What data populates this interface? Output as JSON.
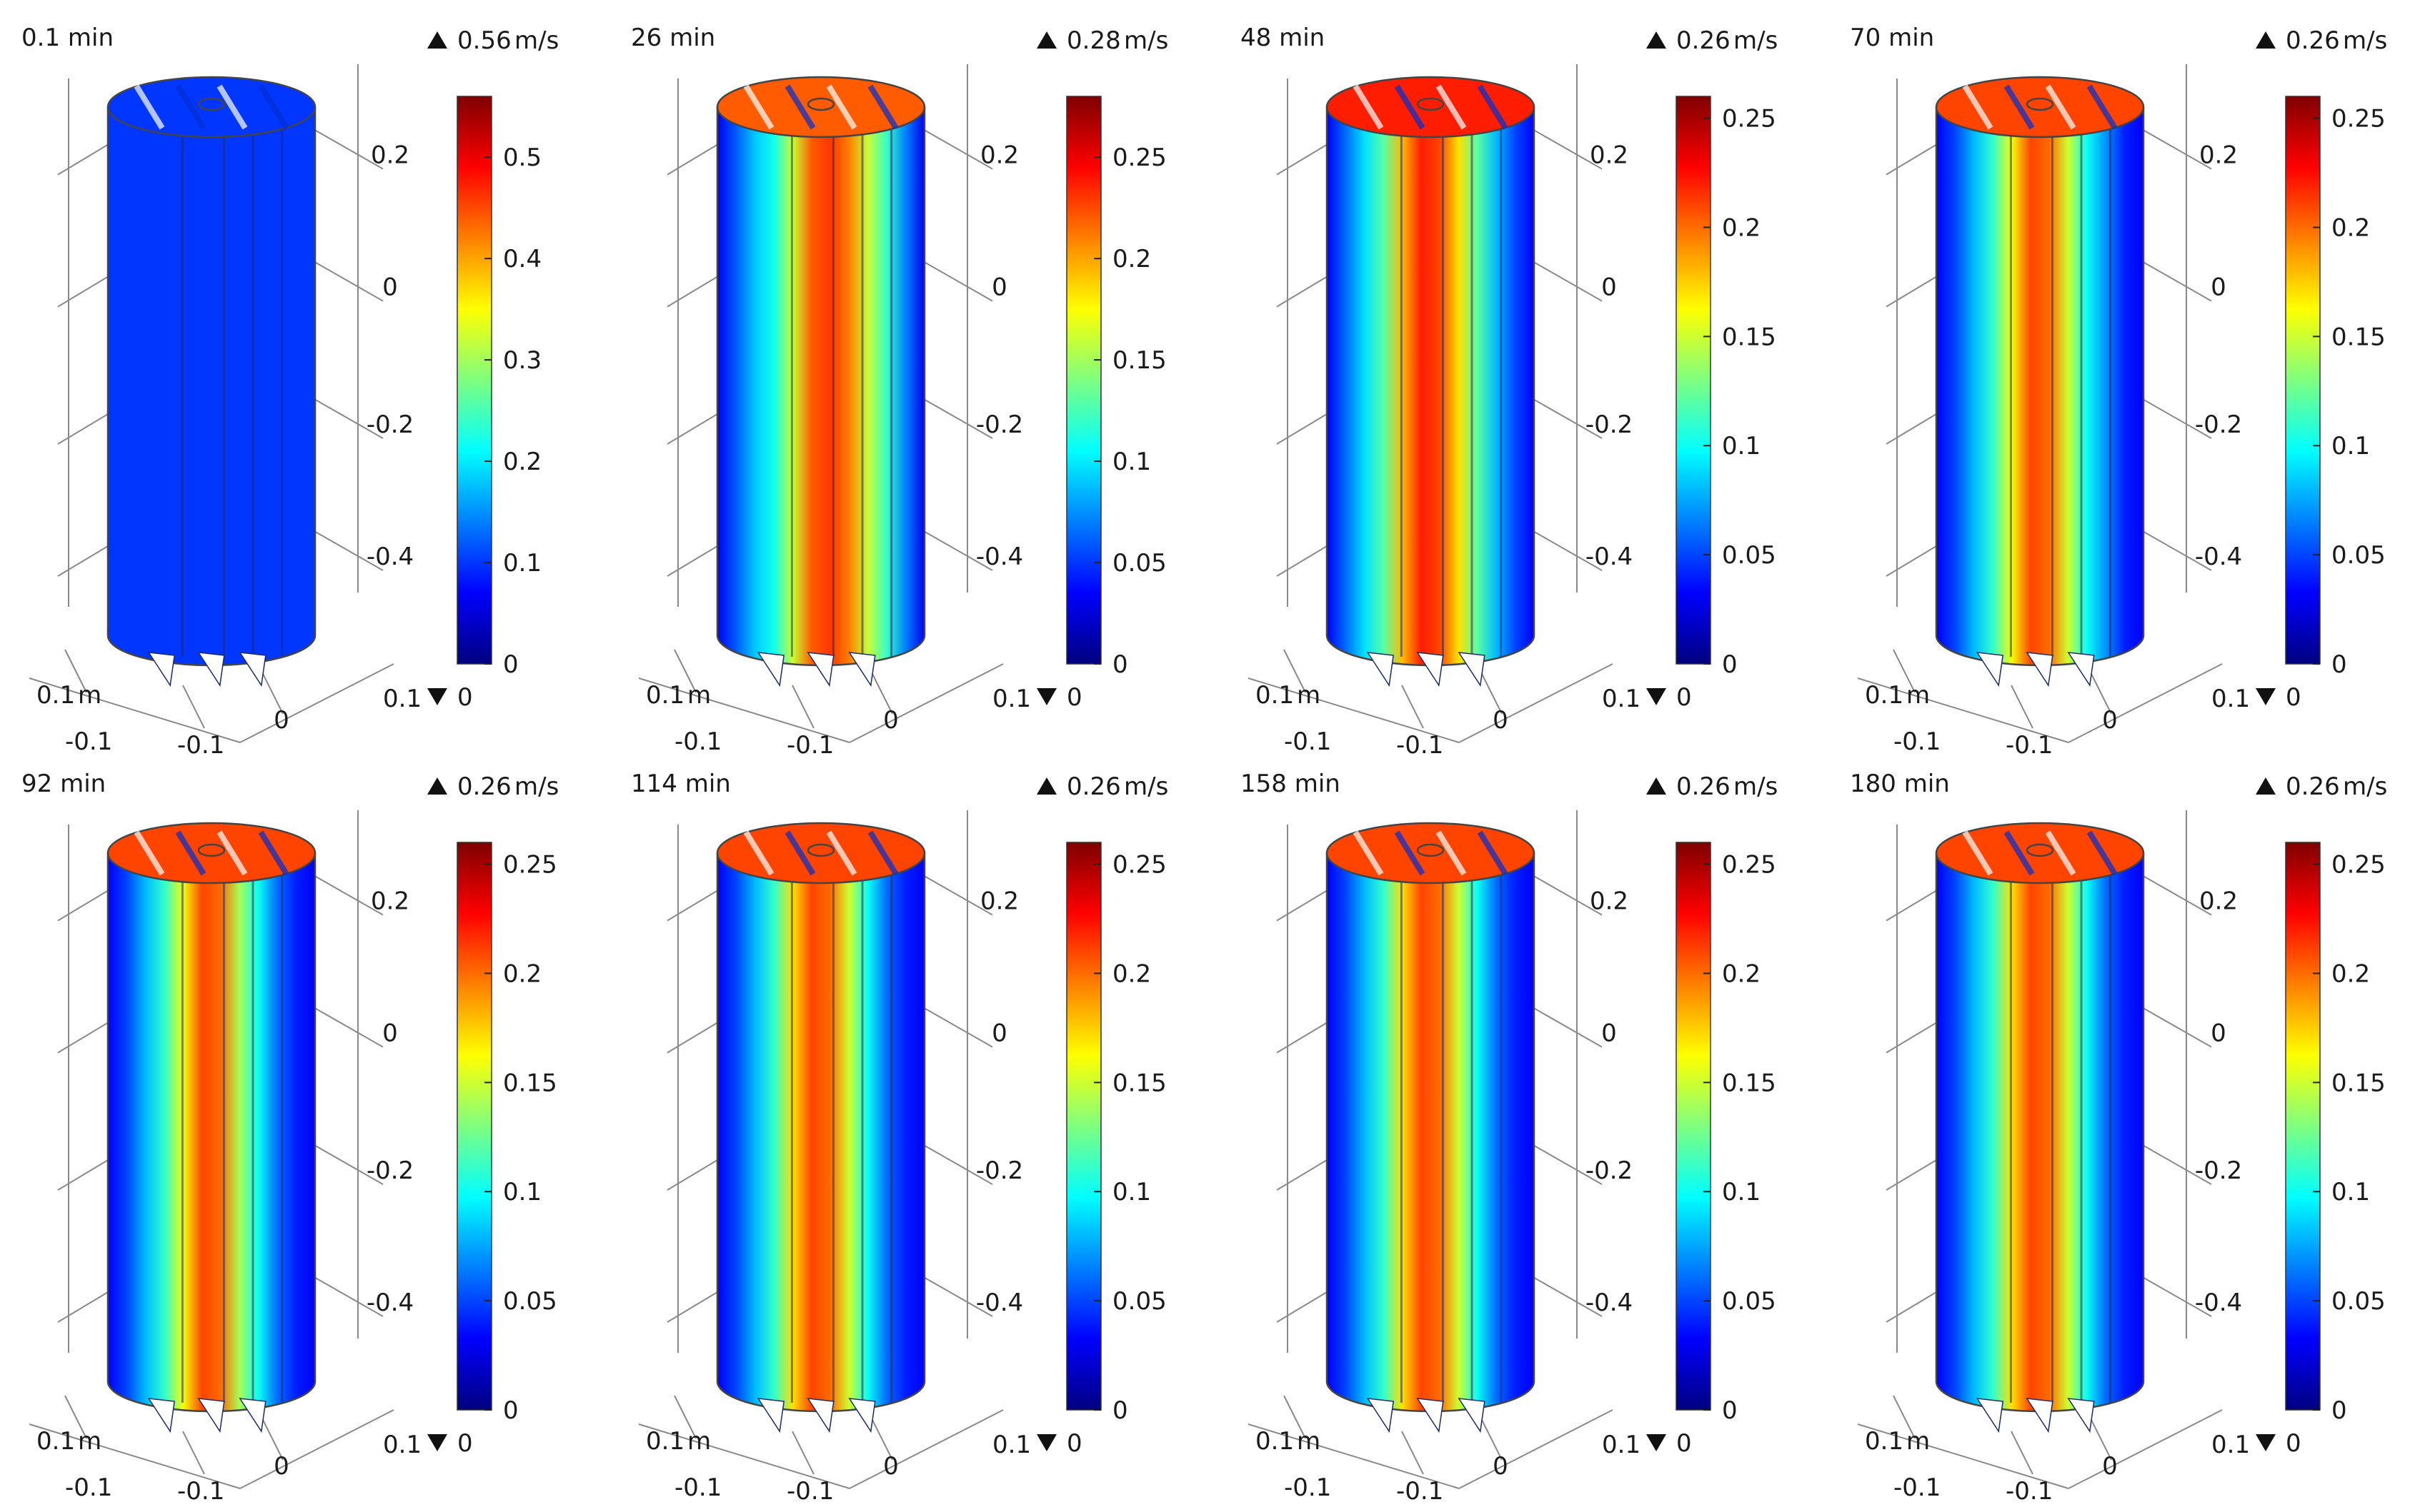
{
  "figure": {
    "columns": 4,
    "rows": 2
  },
  "colormap": {
    "name": "rainbow",
    "stops": [
      "#00007f",
      "#0000ff",
      "#007fff",
      "#00ffff",
      "#7fff7f",
      "#ffff00",
      "#ff7f00",
      "#ff0000",
      "#7f0000"
    ]
  },
  "colors": {
    "cylinder_outline": "#444444",
    "grid": "#8a8a8a",
    "background": "#ffffff"
  },
  "chart_data": [
    {
      "type": "3d-slice-plot",
      "time_label": "0.1 min",
      "quantity_unit": "m/s",
      "max_label": "0.56",
      "min_label": "0",
      "range": [
        0,
        0.56
      ],
      "colorbar_ticks": [
        "0",
        "0.1",
        "0.2",
        "0.3",
        "0.4",
        "0.5"
      ],
      "colorbar_tick_values": [
        0,
        0.1,
        0.2,
        0.3,
        0.4,
        0.5
      ],
      "z_ticks": [
        "0.2",
        "0",
        "-0.2",
        "-0.4"
      ],
      "base_labels": [
        "0.1",
        "m",
        "-0.1",
        "-0.1",
        "0",
        "0.1"
      ],
      "field": [
        0.1,
        0.1,
        0.1,
        0.1,
        0.1,
        0.1,
        0.1,
        0.1,
        0.1,
        0.1,
        0.1,
        0.1
      ]
    },
    {
      "type": "3d-slice-plot",
      "time_label": "26 min",
      "quantity_unit": "m/s",
      "max_label": "0.28",
      "min_label": "0",
      "range": [
        0,
        0.28
      ],
      "colorbar_ticks": [
        "0",
        "0.05",
        "0.1",
        "0.15",
        "0.2",
        "0.25"
      ],
      "colorbar_tick_values": [
        0,
        0.05,
        0.1,
        0.15,
        0.2,
        0.25
      ],
      "z_ticks": [
        "0.2",
        "0",
        "-0.2",
        "-0.4"
      ],
      "base_labels": [
        "0.1",
        "m",
        "-0.1",
        "-0.1",
        "0",
        "0.1"
      ],
      "field": [
        0.03,
        0.06,
        0.09,
        0.11,
        0.16,
        0.22,
        0.23,
        0.21,
        0.16,
        0.12,
        0.07,
        0.03
      ]
    },
    {
      "type": "3d-slice-plot",
      "time_label": "48 min",
      "quantity_unit": "m/s",
      "max_label": "0.26",
      "min_label": "0",
      "range": [
        0,
        0.26
      ],
      "colorbar_ticks": [
        "0",
        "0.05",
        "0.1",
        "0.15",
        "0.2",
        "0.25"
      ],
      "colorbar_tick_values": [
        0,
        0.05,
        0.1,
        0.15,
        0.2,
        0.25
      ],
      "z_ticks": [
        "0.2",
        "0",
        "-0.2",
        "-0.4"
      ],
      "base_labels": [
        "0.1",
        "m",
        "-0.1",
        "-0.1",
        "0",
        "0.1"
      ],
      "field": [
        0.03,
        0.06,
        0.09,
        0.12,
        0.18,
        0.22,
        0.21,
        0.17,
        0.12,
        0.08,
        0.05,
        0.03
      ]
    },
    {
      "type": "3d-slice-plot",
      "time_label": "70 min",
      "quantity_unit": "m/s",
      "max_label": "0.26",
      "min_label": "0",
      "range": [
        0,
        0.26
      ],
      "colorbar_ticks": [
        "0",
        "0.05",
        "0.1",
        "0.15",
        "0.2",
        "0.25"
      ],
      "colorbar_tick_values": [
        0,
        0.05,
        0.1,
        0.15,
        0.2,
        0.25
      ],
      "z_ticks": [
        "0.2",
        "0",
        "-0.2",
        "-0.4"
      ],
      "base_labels": [
        "0.1",
        "m",
        "-0.1",
        "-0.1",
        "0",
        "0.1"
      ],
      "field": [
        0.03,
        0.05,
        0.08,
        0.11,
        0.16,
        0.21,
        0.2,
        0.15,
        0.1,
        0.07,
        0.04,
        0.03
      ]
    },
    {
      "type": "3d-slice-plot",
      "time_label": "92 min",
      "quantity_unit": "m/s",
      "max_label": "0.26",
      "min_label": "0",
      "range": [
        0,
        0.26
      ],
      "colorbar_ticks": [
        "0",
        "0.05",
        "0.1",
        "0.15",
        "0.2",
        "0.25"
      ],
      "colorbar_tick_values": [
        0,
        0.05,
        0.1,
        0.15,
        0.2,
        0.25
      ],
      "z_ticks": [
        "0.2",
        "0",
        "-0.2",
        "-0.4"
      ],
      "base_labels": [
        "0.1",
        "m",
        "-0.1",
        "-0.1",
        "0",
        "0.1"
      ],
      "field": [
        0.03,
        0.05,
        0.08,
        0.11,
        0.16,
        0.21,
        0.2,
        0.14,
        0.1,
        0.06,
        0.04,
        0.03
      ]
    },
    {
      "type": "3d-slice-plot",
      "time_label": "114 min",
      "quantity_unit": "m/s",
      "max_label": "0.26",
      "min_label": "0",
      "range": [
        0,
        0.26
      ],
      "colorbar_ticks": [
        "0",
        "0.05",
        "0.1",
        "0.15",
        "0.2",
        "0.25"
      ],
      "colorbar_tick_values": [
        0,
        0.05,
        0.1,
        0.15,
        0.2,
        0.25
      ],
      "z_ticks": [
        "0.2",
        "0",
        "-0.2",
        "-0.4"
      ],
      "base_labels": [
        "0.1",
        "m",
        "-0.1",
        "-0.1",
        "0",
        "0.1"
      ],
      "field": [
        0.03,
        0.05,
        0.08,
        0.11,
        0.17,
        0.21,
        0.2,
        0.15,
        0.1,
        0.06,
        0.04,
        0.03
      ]
    },
    {
      "type": "3d-slice-plot",
      "time_label": "158 min",
      "quantity_unit": "m/s",
      "max_label": "0.26",
      "min_label": "0",
      "range": [
        0,
        0.26
      ],
      "colorbar_ticks": [
        "0",
        "0.05",
        "0.1",
        "0.15",
        "0.2",
        "0.25"
      ],
      "colorbar_tick_values": [
        0,
        0.05,
        0.1,
        0.15,
        0.2,
        0.25
      ],
      "z_ticks": [
        "0.2",
        "0",
        "-0.2",
        "-0.4"
      ],
      "base_labels": [
        "0.1",
        "m",
        "-0.1",
        "-0.1",
        "0",
        "0.1"
      ],
      "field": [
        0.03,
        0.05,
        0.08,
        0.11,
        0.17,
        0.21,
        0.2,
        0.15,
        0.1,
        0.06,
        0.04,
        0.03
      ]
    },
    {
      "type": "3d-slice-plot",
      "time_label": "180 min",
      "quantity_unit": "m/s",
      "max_label": "0.26",
      "min_label": "0",
      "range": [
        0,
        0.26
      ],
      "colorbar_ticks": [
        "0",
        "0.05",
        "0.1",
        "0.15",
        "0.2",
        "0.25"
      ],
      "colorbar_tick_values": [
        0,
        0.05,
        0.1,
        0.15,
        0.2,
        0.25
      ],
      "z_ticks": [
        "0.2",
        "0",
        "-0.2",
        "-0.4"
      ],
      "base_labels": [
        "0.1",
        "m",
        "-0.1",
        "-0.1",
        "0",
        "0.1"
      ],
      "field": [
        0.03,
        0.05,
        0.08,
        0.11,
        0.17,
        0.21,
        0.2,
        0.15,
        0.1,
        0.06,
        0.04,
        0.03
      ]
    }
  ]
}
